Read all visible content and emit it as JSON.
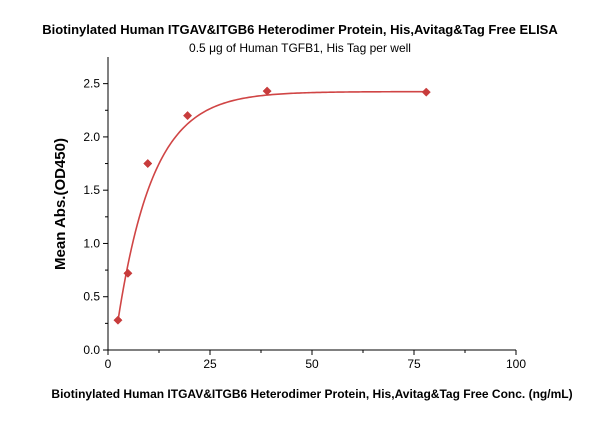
{
  "chart_data": {
    "type": "scatter",
    "title": "Biotinylated Human ITGAV&ITGB6 Heterodimer Protein, His,Avitag&Tag Free ELISA",
    "subtitle": "0.5 μg of Human TGFB1, His Tag per well",
    "xlabel": "Biotinylated Human ITGAV&ITGB6 Heterodimer Protein, His,Avitag&Tag Free Conc. (ng/mL)",
    "ylabel": "Mean Abs.(OD450)",
    "xlim": [
      0,
      100
    ],
    "ylim": [
      0,
      2.75
    ],
    "xticks": [
      0,
      25,
      50,
      75,
      100
    ],
    "yticks": [
      0.0,
      0.5,
      1.0,
      1.5,
      2.0,
      2.5
    ],
    "xtick_labels": [
      "0",
      "25",
      "50",
      "75",
      "100"
    ],
    "ytick_labels": [
      "0.0",
      "0.5",
      "1.0",
      "1.5",
      "2.0",
      "2.5"
    ],
    "grid": false,
    "series": [
      {
        "marker": "diamond",
        "color": "#c83c3c",
        "x": [
          2.44,
          4.88,
          9.75,
          19.5,
          39,
          78
        ],
        "y": [
          0.28,
          0.72,
          1.75,
          2.2,
          2.43,
          2.42
        ]
      }
    ],
    "fit_curve": {
      "color": "#d04545",
      "model": "saturation",
      "top": 2.425,
      "start": 1.4,
      "k": 0.115
    }
  }
}
